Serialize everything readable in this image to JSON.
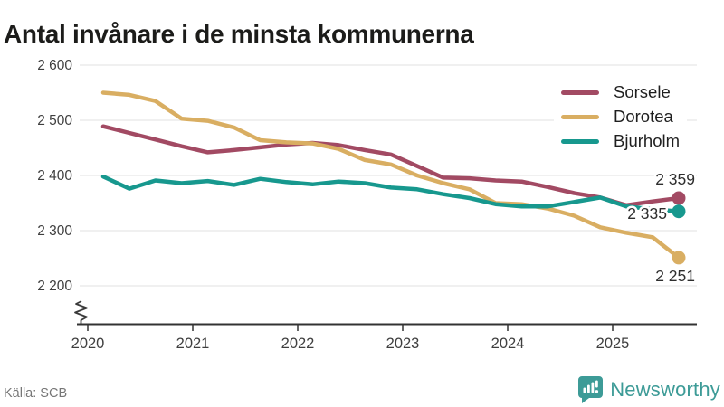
{
  "title": "Antal invånare i de minsta kommunerna",
  "source": "Källa: SCB",
  "brand": {
    "name": "Newsworthy",
    "color": "#3d9b97"
  },
  "chart_data": {
    "type": "line",
    "title": "Antal invånare i de minsta kommunerna",
    "frequency": "quarterly",
    "grid": true,
    "legend_position": "top-right",
    "axis_break": true,
    "ylim": [
      2200,
      2600
    ],
    "x_ticks": [
      "2020",
      "2021",
      "2022",
      "2023",
      "2024",
      "2025"
    ],
    "y_ticks": [
      "2 600",
      "2 500",
      "2 400",
      "2 300",
      "2 200"
    ],
    "y_tick_values": [
      2600,
      2500,
      2400,
      2300,
      2200
    ],
    "series": [
      {
        "name": "Sorsele",
        "color": "#a24a63",
        "end_label": "2 359",
        "values": [
          2489,
          2477,
          2465,
          2453,
          2442,
          2446,
          2451,
          2456,
          2459,
          2455,
          2446,
          2438,
          2417,
          2396,
          2395,
          2391,
          2389,
          2379,
          2368,
          2360,
          2346,
          2353,
          2359
        ]
      },
      {
        "name": "Dorotea",
        "color": "#d9ae62",
        "end_label": "2 251",
        "values": [
          2550,
          2546,
          2535,
          2503,
          2499,
          2487,
          2464,
          2460,
          2458,
          2448,
          2428,
          2420,
          2400,
          2386,
          2375,
          2350,
          2348,
          2340,
          2327,
          2306,
          2296,
          2288,
          2251
        ]
      },
      {
        "name": "Bjurholm",
        "color": "#17988e",
        "end_label": "2 335",
        "values": [
          2398,
          2376,
          2391,
          2386,
          2390,
          2383,
          2394,
          2388,
          2384,
          2389,
          2386,
          2378,
          2375,
          2366,
          2359,
          2348,
          2344,
          2344,
          2352,
          2360,
          2344,
          2339,
          2335
        ]
      }
    ]
  }
}
